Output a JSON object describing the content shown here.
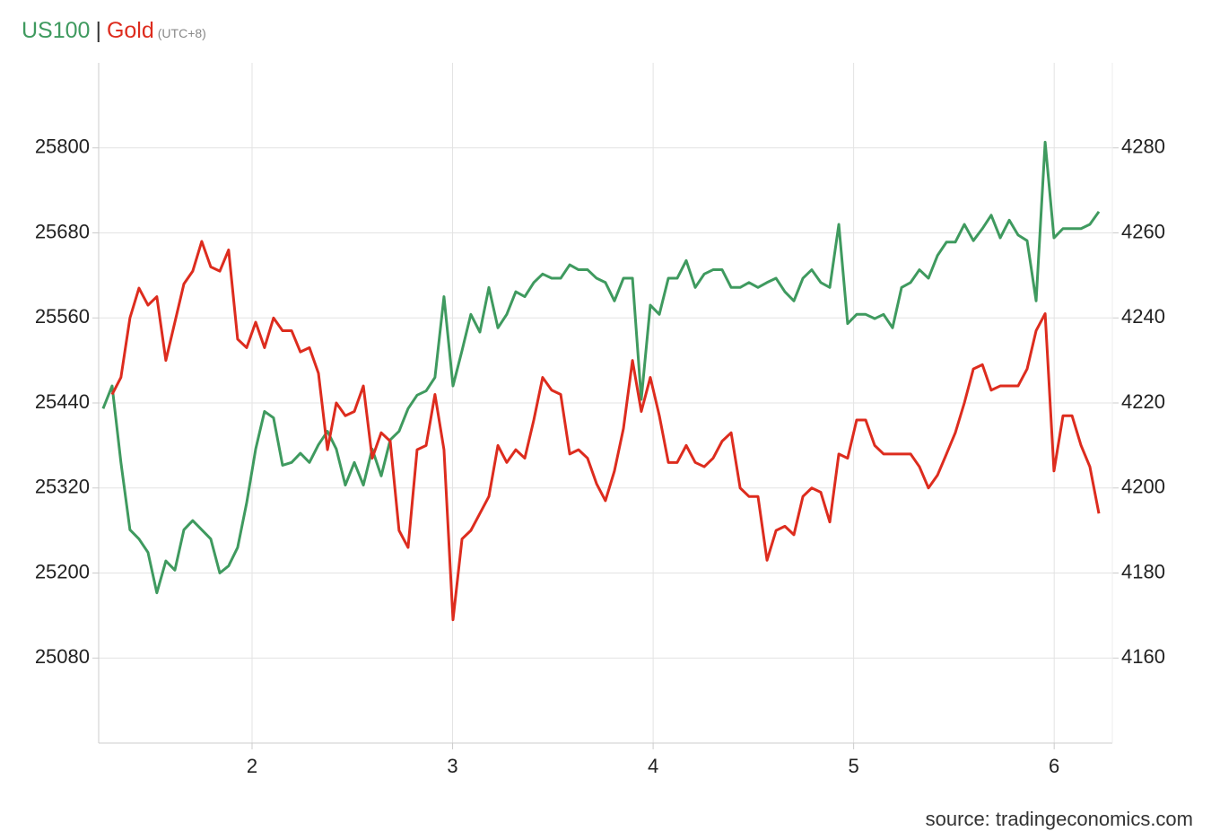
{
  "chart_data": {
    "type": "line",
    "legend_separator": "|",
    "timezone_note": "(UTC+8)",
    "source": "source: tradingeconomics.com",
    "x": [
      1.257,
      1.302,
      1.346,
      1.391,
      1.436,
      1.481,
      1.525,
      1.57,
      1.615,
      1.66,
      1.704,
      1.749,
      1.794,
      1.839,
      1.883,
      1.928,
      1.973,
      2.018,
      2.062,
      2.107,
      2.152,
      2.197,
      2.241,
      2.286,
      2.331,
      2.376,
      2.42,
      2.465,
      2.51,
      2.555,
      2.599,
      2.644,
      2.689,
      2.733,
      2.778,
      2.823,
      2.868,
      2.912,
      2.957,
      3.002,
      3.047,
      3.091,
      3.136,
      3.181,
      3.226,
      3.27,
      3.315,
      3.36,
      3.405,
      3.449,
      3.494,
      3.539,
      3.584,
      3.628,
      3.673,
      3.718,
      3.762,
      3.807,
      3.852,
      3.897,
      3.941,
      3.986,
      4.031,
      4.076,
      4.12,
      4.165,
      4.21,
      4.255,
      4.299,
      4.344,
      4.389,
      4.434,
      4.478,
      4.523,
      4.568,
      4.613,
      4.657,
      4.702,
      4.747,
      4.791,
      4.836,
      4.881,
      4.926,
      4.97,
      5.015,
      5.06,
      5.105,
      5.149,
      5.194,
      5.239,
      5.284,
      5.328,
      5.373,
      5.418,
      5.463,
      5.507,
      5.552,
      5.597,
      5.642,
      5.686,
      5.731,
      5.776,
      5.82,
      5.865,
      5.91,
      5.955,
      5.999,
      6.044,
      6.089,
      6.134,
      6.178,
      6.223
    ],
    "series": [
      {
        "name": "US100",
        "color": "#3f9a5f",
        "axis": "y",
        "values": [
          25432,
          25464,
          25356,
          25261,
          25248,
          25229,
          25172,
          25217,
          25204,
          25261,
          25274,
          25261,
          25248,
          25200,
          25210,
          25236,
          25299,
          25375,
          25428,
          25419,
          25352,
          25356,
          25369,
          25356,
          25381,
          25400,
          25375,
          25324,
          25356,
          25324,
          25375,
          25337,
          25388,
          25400,
          25432,
          25451,
          25457,
          25476,
          25590,
          25464,
          25514,
          25565,
          25540,
          25603,
          25546,
          25565,
          25597,
          25590,
          25610,
          25622,
          25616,
          25616,
          25635,
          25628,
          25628,
          25616,
          25610,
          25584,
          25616,
          25616,
          25445,
          25578,
          25565,
          25616,
          25616,
          25641,
          25603,
          25622,
          25628,
          25628,
          25603,
          25603,
          25610,
          25603,
          25610,
          25616,
          25597,
          25584,
          25616,
          25628,
          25610,
          25603,
          25692,
          25552,
          25565,
          25565,
          25559,
          25565,
          25546,
          25603,
          25610,
          25628,
          25616,
          25648,
          25667,
          25667,
          25692,
          25669,
          25686,
          25705,
          25673,
          25698,
          25677,
          25669,
          25584,
          25808,
          25673,
          25686,
          25686,
          25686,
          25692,
          25710
        ]
      },
      {
        "name": "Gold",
        "color": "#dd2c1e",
        "axis": "y2",
        "values": [
          null,
          4222,
          4226,
          4240,
          4247,
          4243,
          4245,
          4230,
          4239,
          4248,
          4251,
          4258,
          4252,
          4251,
          4256,
          4235,
          4233,
          4239,
          4233,
          4240,
          4237,
          4237,
          4232,
          4233,
          4227,
          4209,
          4220,
          4217,
          4218,
          4224,
          4207,
          4213,
          4211,
          4190,
          4186,
          4209,
          4210,
          4222,
          4209,
          4169,
          4188,
          4190,
          4194,
          4198,
          4210,
          4206,
          4209,
          4207,
          4216,
          4226,
          4223,
          4222,
          4208,
          4209,
          4207,
          4201,
          4197,
          4204,
          4214,
          4230,
          4218,
          4226,
          4217,
          4206,
          4206,
          4210,
          4206,
          4205,
          4207,
          4211,
          4213,
          4200,
          4198,
          4198,
          4183,
          4190,
          4191,
          4189,
          4198,
          4200,
          4199,
          4192,
          4208,
          4207,
          4216,
          4216,
          4210,
          4208,
          4208,
          4208,
          4208,
          4205,
          4200,
          4203,
          4208,
          4213,
          4220,
          4228,
          4229,
          4223,
          4224,
          4224,
          4224,
          4228,
          4237,
          4241,
          4204,
          4217,
          4217,
          4210,
          4205,
          4194
        ]
      }
    ],
    "xlim": [
      1.235,
      6.29
    ],
    "xticks": [
      2,
      3,
      4,
      5,
      6
    ],
    "ylim": [
      24960,
      25920
    ],
    "yticks": [
      25080,
      25200,
      25320,
      25440,
      25560,
      25680,
      25800
    ],
    "y2lim": [
      4140,
      4300
    ],
    "y2ticks": [
      4160,
      4180,
      4200,
      4220,
      4240,
      4260,
      4280
    ],
    "grid": true
  }
}
